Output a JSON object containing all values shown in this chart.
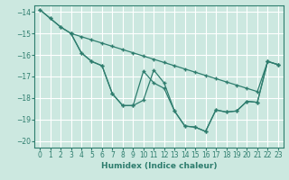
{
  "xlabel": "Humidex (Indice chaleur)",
  "bg_color": "#cce8e0",
  "grid_color": "#ffffff",
  "line_color": "#2e7d6e",
  "xlim": [
    -0.5,
    23.5
  ],
  "ylim": [
    -20.3,
    -13.7
  ],
  "yticks": [
    -20,
    -19,
    -18,
    -17,
    -16,
    -15,
    -14
  ],
  "xticks": [
    0,
    1,
    2,
    3,
    4,
    5,
    6,
    7,
    8,
    9,
    10,
    11,
    12,
    13,
    14,
    15,
    16,
    17,
    18,
    19,
    20,
    21,
    22,
    23
  ],
  "line1_x": [
    0,
    1,
    2,
    3,
    4,
    5,
    6,
    7,
    8,
    9,
    10,
    11,
    12,
    13,
    14,
    15,
    16,
    17,
    18,
    19,
    20,
    21,
    22,
    23
  ],
  "line1_y": [
    -13.9,
    -14.3,
    -14.7,
    -15.0,
    -15.15,
    -15.3,
    -15.45,
    -15.6,
    -15.75,
    -15.9,
    -16.05,
    -16.2,
    -16.35,
    -16.5,
    -16.65,
    -16.8,
    -16.95,
    -17.1,
    -17.25,
    -17.4,
    -17.55,
    -17.7,
    -16.3,
    -16.45
  ],
  "line2_x": [
    0,
    1,
    2,
    3,
    4,
    5,
    6,
    7,
    8,
    9,
    10,
    11,
    12,
    13,
    14,
    15,
    16,
    17,
    18,
    19,
    20,
    21,
    22,
    23
  ],
  "line2_y": [
    -13.9,
    -14.3,
    -14.7,
    -15.0,
    -15.9,
    -16.3,
    -16.5,
    -17.8,
    -18.35,
    -18.35,
    -16.75,
    -17.3,
    -17.55,
    -18.6,
    -19.3,
    -19.35,
    -19.55,
    -18.55,
    -18.65,
    -18.6,
    -18.15,
    -18.2,
    -16.3,
    -16.45
  ],
  "line3_x": [
    3,
    4,
    5,
    6,
    7,
    8,
    9,
    10,
    11,
    12,
    13,
    14,
    15,
    16,
    17,
    18,
    19,
    20,
    21,
    22,
    23
  ],
  "line3_y": [
    -15.0,
    -15.9,
    -16.3,
    -16.5,
    -17.8,
    -18.35,
    -18.35,
    -18.1,
    -16.7,
    -17.3,
    -18.6,
    -19.3,
    -19.35,
    -19.55,
    -18.55,
    -18.65,
    -18.6,
    -18.15,
    -18.2,
    -16.3,
    -16.45
  ]
}
